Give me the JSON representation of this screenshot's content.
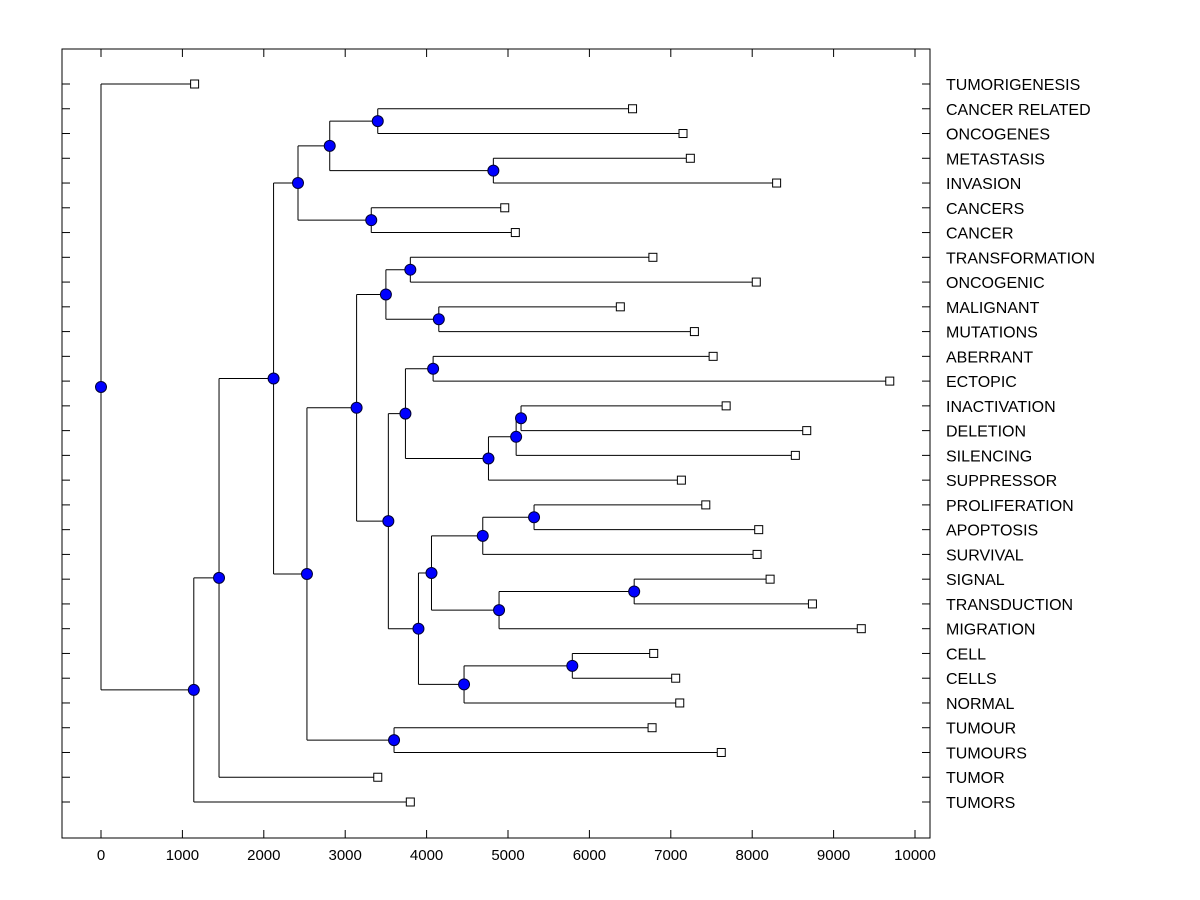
{
  "chart_data": {
    "type": "dendrogram",
    "title": "",
    "xlabel": "",
    "ylabel": "",
    "xlim": [
      -500,
      10200
    ],
    "x_ticks": [
      0,
      1000,
      2000,
      3000,
      4000,
      5000,
      6000,
      7000,
      8000,
      9000,
      10000
    ],
    "x_tick_labels": [
      "0",
      "1000",
      "2000",
      "3000",
      "4000",
      "5000",
      "6000",
      "7000",
      "8000",
      "9000",
      "10000"
    ],
    "grid": false,
    "leaf_order": [
      "TUMORIGENESIS",
      "CANCER RELATED",
      "ONCOGENES",
      "METASTASIS",
      "INVASION",
      "CANCERS",
      "CANCER",
      "TRANSFORMATION",
      "ONCOGENIC",
      "MALIGNANT",
      "MUTATIONS",
      "ABERRANT",
      "ECTOPIC",
      "INACTIVATION",
      "DELETION",
      "SILENCING",
      "SUPPRESSOR",
      "PROLIFERATION",
      "APOPTOSIS",
      "SURVIVAL",
      "SIGNAL",
      "TRANSDUCTION",
      "MIGRATION",
      "CELL",
      "CELLS",
      "NORMAL",
      "TUMOUR",
      "TUMOURS",
      "TUMOR",
      "TUMORS"
    ],
    "leaves": {
      "TUMORIGENESIS": 1150,
      "CANCER RELATED": 6530,
      "ONCOGENES": 7150,
      "METASTASIS": 7240,
      "INVASION": 8300,
      "CANCERS": 4960,
      "CANCER": 5090,
      "TRANSFORMATION": 6780,
      "ONCOGENIC": 8050,
      "MALIGNANT": 6380,
      "MUTATIONS": 7290,
      "ABERRANT": 7520,
      "ECTOPIC": 9690,
      "INACTIVATION": 7680,
      "DELETION": 8670,
      "SILENCING": 8530,
      "SUPPRESSOR": 7130,
      "PROLIFERATION": 7430,
      "APOPTOSIS": 8080,
      "SURVIVAL": 8060,
      "SIGNAL": 8220,
      "TRANSDUCTION": 8740,
      "MIGRATION": 9340,
      "CELL": 6790,
      "CELLS": 7060,
      "NORMAL": 7110,
      "TUMOUR": 6770,
      "TUMOURS": 7620,
      "TUMOR": 3400,
      "TUMORS": 3800
    },
    "tree": {
      "value": 0,
      "children": [
        "TUMORIGENESIS",
        {
          "value": 1140,
          "children": [
            {
              "value": 1450,
              "children": [
                {
                  "value": 2120,
                  "children": [
                    {
                      "value": 2420,
                      "children": [
                        {
                          "value": 2810,
                          "children": [
                            {
                              "value": 3400,
                              "children": [
                                "CANCER RELATED",
                                "ONCOGENES"
                              ]
                            },
                            {
                              "value": 4820,
                              "children": [
                                "METASTASIS",
                                "INVASION"
                              ]
                            }
                          ]
                        },
                        {
                          "value": 3320,
                          "children": [
                            "CANCERS",
                            "CANCER"
                          ]
                        }
                      ]
                    },
                    {
                      "value": 2530,
                      "children": [
                        {
                          "value": 3140,
                          "children": [
                            {
                              "value": 3500,
                              "children": [
                                {
                                  "value": 3800,
                                  "children": [
                                    "TRANSFORMATION",
                                    "ONCOGENIC"
                                  ]
                                },
                                {
                                  "value": 4150,
                                  "children": [
                                    "MALIGNANT",
                                    "MUTATIONS"
                                  ]
                                }
                              ]
                            },
                            {
                              "value": 3530,
                              "children": [
                                {
                                  "value": 3740,
                                  "children": [
                                    {
                                      "value": 4080,
                                      "children": [
                                        "ABERRANT",
                                        "ECTOPIC"
                                      ]
                                    },
                                    {
                                      "value": 4760,
                                      "children": [
                                        {
                                          "value": 5100,
                                          "children": [
                                            {
                                              "value": 5160,
                                              "children": [
                                                "INACTIVATION",
                                                "DELETION"
                                              ]
                                            },
                                            "SILENCING"
                                          ]
                                        },
                                        "SUPPRESSOR"
                                      ]
                                    }
                                  ]
                                },
                                {
                                  "value": 3900,
                                  "children": [
                                    {
                                      "value": 4060,
                                      "children": [
                                        {
                                          "value": 4690,
                                          "children": [
                                            {
                                              "value": 5320,
                                              "children": [
                                                "PROLIFERATION",
                                                "APOPTOSIS"
                                              ]
                                            },
                                            "SURVIVAL"
                                          ]
                                        },
                                        {
                                          "value": 4890,
                                          "children": [
                                            {
                                              "value": 6550,
                                              "children": [
                                                "SIGNAL",
                                                "TRANSDUCTION"
                                              ]
                                            },
                                            "MIGRATION"
                                          ]
                                        }
                                      ]
                                    },
                                    {
                                      "value": 4460,
                                      "children": [
                                        {
                                          "value": 5790,
                                          "children": [
                                            "CELL",
                                            "CELLS"
                                          ]
                                        },
                                        "NORMAL"
                                      ]
                                    }
                                  ]
                                }
                              ]
                            }
                          ]
                        },
                        {
                          "value": 3600,
                          "children": [
                            "TUMOUR",
                            "TUMOURS"
                          ]
                        }
                      ]
                    }
                  ]
                },
                "TUMOR"
              ]
            },
            "TUMORS"
          ]
        }
      ]
    },
    "colors": {
      "node_fill": "#0000ff",
      "node_stroke": "#000033",
      "line": "#000000",
      "leaf_marker_fill": "#ffffff",
      "background": "#ffffff"
    }
  }
}
